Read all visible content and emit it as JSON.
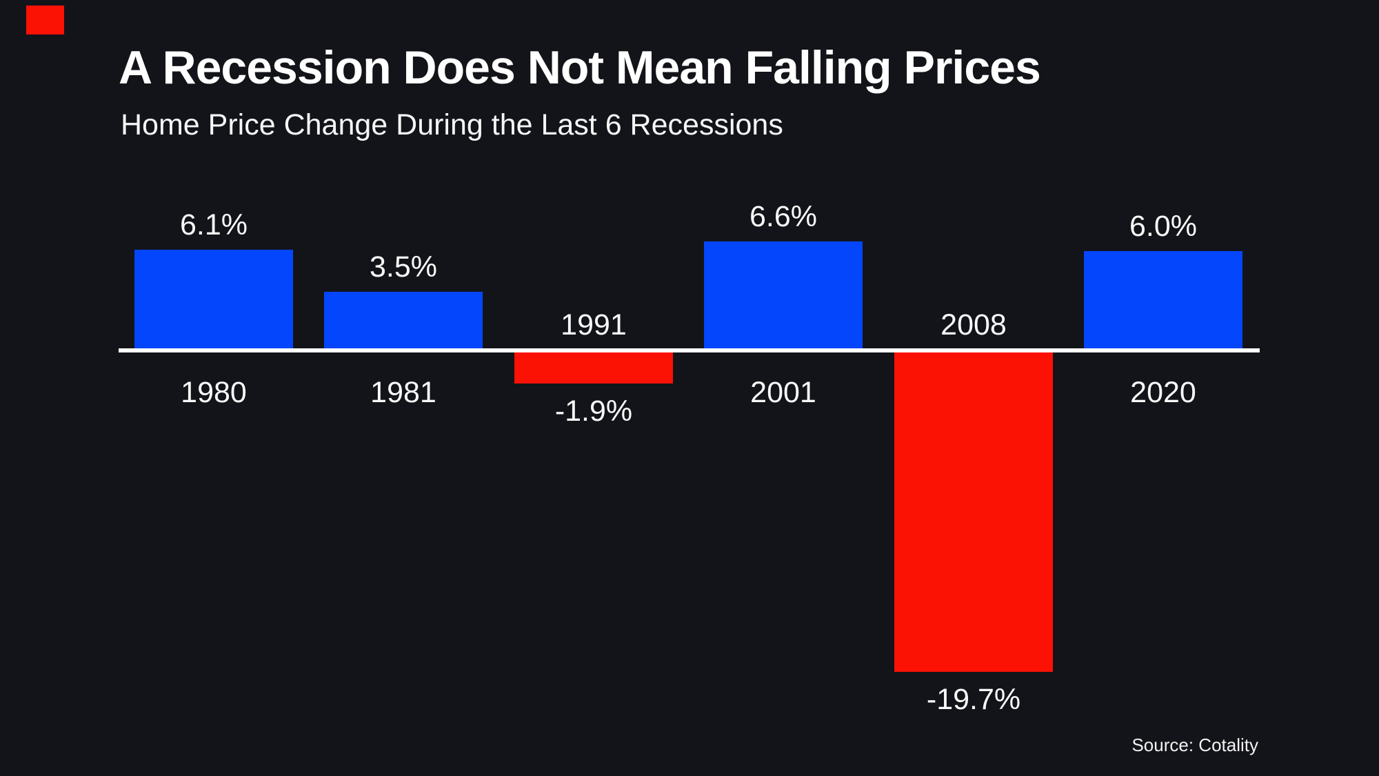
{
  "page": {
    "background_color": "#131419",
    "text_color": "#ffffff"
  },
  "decor": {
    "corner_marker_color": "#fb1205"
  },
  "header": {
    "title": "A Recession Does Not Mean Falling Prices",
    "subtitle": "Home Price Change During the Last 6 Recessions"
  },
  "footer": {
    "source": "Source: Cotality"
  },
  "chart_data": {
    "type": "bar",
    "title": "A Recession Does Not Mean Falling Prices",
    "subtitle": "Home Price Change During the Last 6 Recessions",
    "categories": [
      "1980",
      "1981",
      "1991",
      "2001",
      "2008",
      "2020"
    ],
    "values": [
      6.1,
      3.5,
      -1.9,
      6.6,
      -19.7,
      6.0
    ],
    "value_labels": [
      "6.1%",
      "3.5%",
      "-1.9%",
      "6.6%",
      "-19.7%",
      "6.0%"
    ],
    "positive_color": "#0446fb",
    "negative_color": "#fb1205",
    "axis_color": "#ffffff",
    "ylim": [
      -19.7,
      6.6
    ],
    "grid": false,
    "legend": false,
    "source": "Source: Cotality"
  }
}
